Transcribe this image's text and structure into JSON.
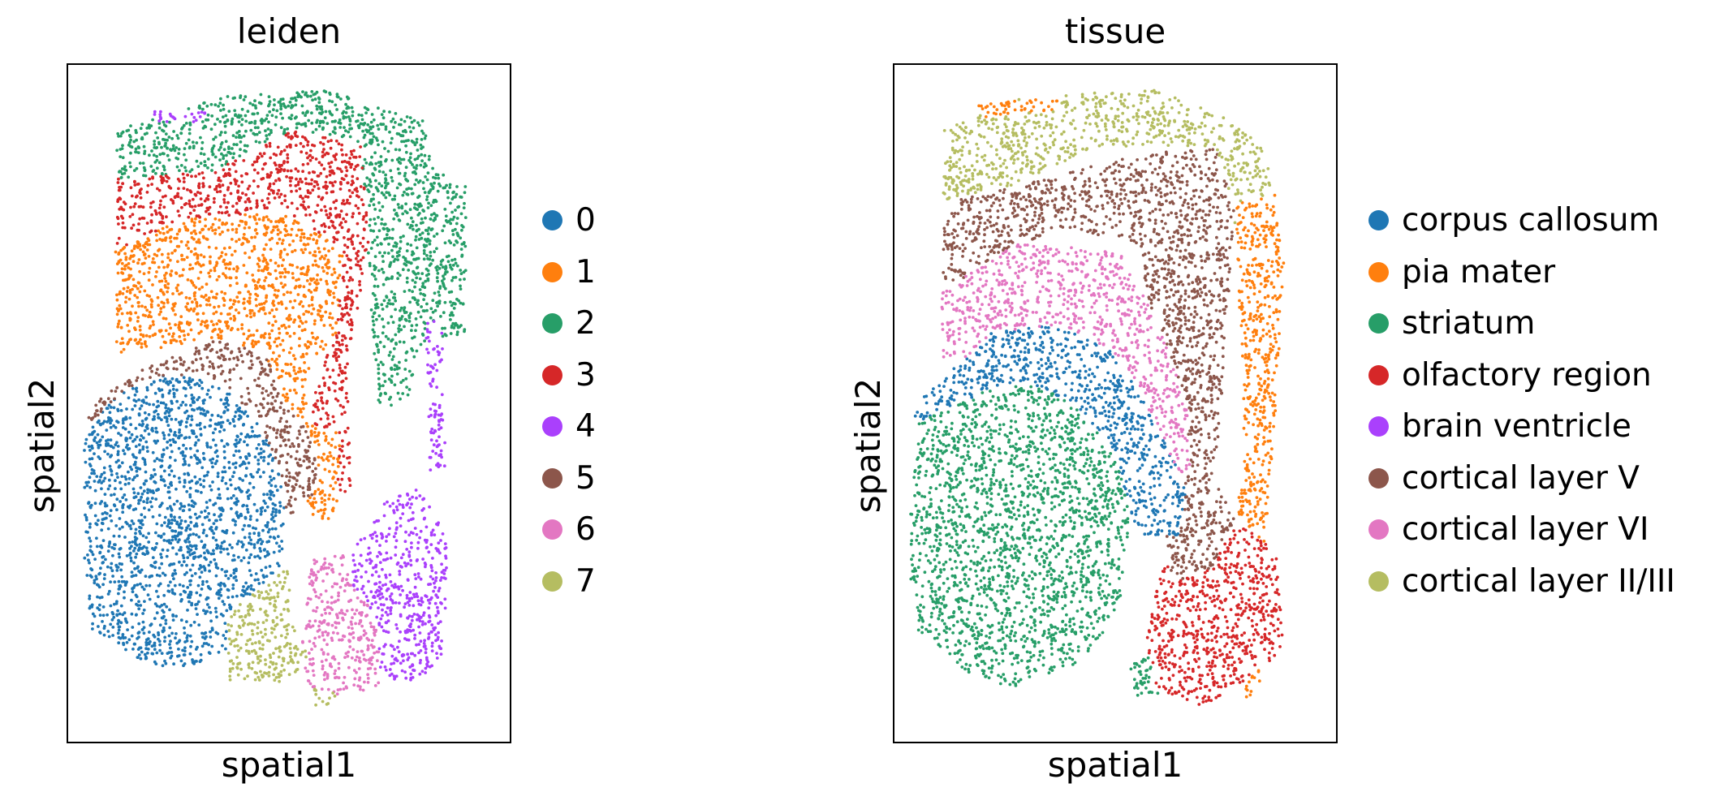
{
  "chart_data": [
    {
      "type": "scatter",
      "title": "leiden",
      "xlabel": "spatial1",
      "ylabel": "spatial2",
      "grid": false,
      "legend_position": "right",
      "ticks_shown": false,
      "series": [
        {
          "name": "0",
          "color": "#1f77b4"
        },
        {
          "name": "1",
          "color": "#ff7f0e"
        },
        {
          "name": "2",
          "color": "#279e68"
        },
        {
          "name": "3",
          "color": "#d62728"
        },
        {
          "name": "4",
          "color": "#aa40fc"
        },
        {
          "name": "5",
          "color": "#8c564b"
        },
        {
          "name": "6",
          "color": "#e377c2"
        },
        {
          "name": "7",
          "color": "#b5bd61"
        }
      ]
    },
    {
      "type": "scatter",
      "title": "tissue",
      "xlabel": "spatial1",
      "ylabel": "spatial2",
      "grid": false,
      "legend_position": "right",
      "ticks_shown": false,
      "series": [
        {
          "name": "corpus callosum",
          "color": "#1f77b4"
        },
        {
          "name": "pia mater",
          "color": "#ff7f0e"
        },
        {
          "name": "striatum",
          "color": "#279e68"
        },
        {
          "name": "olfactory region",
          "color": "#d62728"
        },
        {
          "name": "brain ventricle",
          "color": "#aa40fc"
        },
        {
          "name": "cortical layer V",
          "color": "#8c564b"
        },
        {
          "name": "cortical layer VI",
          "color": "#e377c2"
        },
        {
          "name": "cortical layer II/III",
          "color": "#b5bd61"
        }
      ]
    }
  ]
}
